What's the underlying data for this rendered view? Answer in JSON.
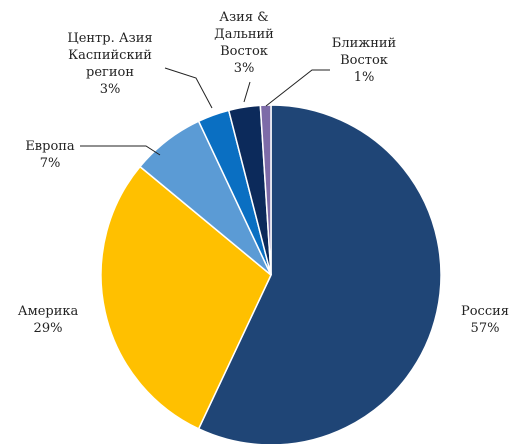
{
  "chart_data": {
    "type": "pie",
    "start_angle_deg": 0,
    "direction": "clockwise",
    "legend": "none",
    "slices": [
      {
        "label_lines": [
          "Россия"
        ],
        "value_label": "57%",
        "value": 57,
        "color": "#1F4576"
      },
      {
        "label_lines": [
          "Америка"
        ],
        "value_label": "29%",
        "value": 29,
        "color": "#FFC000"
      },
      {
        "label_lines": [
          "Европа"
        ],
        "value_label": "7%",
        "value": 7,
        "color": "#5B9BD5"
      },
      {
        "label_lines": [
          "Центр. Азия",
          "Каспийский",
          "регион"
        ],
        "value_label": "3%",
        "value": 3,
        "color": "#0A6FC2"
      },
      {
        "label_lines": [
          "Азия &",
          "Дальний",
          "Восток"
        ],
        "value_label": "3%",
        "value": 3,
        "color": "#0C2A5B"
      },
      {
        "label_lines": [
          "Ближний",
          "Восток"
        ],
        "value_label": "1%",
        "value": 1,
        "color": "#7D6BA8"
      }
    ]
  }
}
